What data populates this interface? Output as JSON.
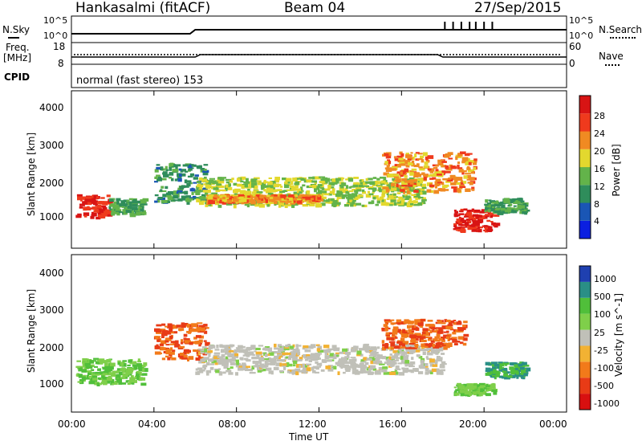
{
  "header": {
    "station": "Hankasalmi (fitACF)",
    "beam": "Beam 04",
    "date": "27/Sep/2015"
  },
  "noise_panel": {
    "left_label": "N.Sky",
    "left_ticks": [
      "10^5",
      "10^0"
    ],
    "right_label": "N.Search",
    "right_ticks": [
      "10^5",
      "10^0"
    ]
  },
  "freq_panel": {
    "left_label_1": "Freq.",
    "left_label_2": "[MHz]",
    "left_ticks": [
      "18",
      "8"
    ],
    "right_label": "Nave",
    "right_ticks": [
      "60",
      "0"
    ]
  },
  "cpid_panel": {
    "label": "CPID",
    "text": "normal (fast stereo) 153"
  },
  "x_axis": {
    "ticks": [
      "00:00",
      "04:00",
      "08:00",
      "12:00",
      "16:00",
      "20:00",
      "00:00"
    ],
    "label": "Time UT"
  },
  "power_panel": {
    "ylabel": "Slant Range [km]",
    "yticks": [
      "4000",
      "3000",
      "2000",
      "1000"
    ],
    "colorbar_label": "Power [dB]",
    "colorbar_ticks": [
      "28",
      "24",
      "20",
      "16",
      "12",
      "8",
      "4"
    ],
    "colors": [
      "#0b1fe0",
      "#1a56b5",
      "#2f8d5b",
      "#63b34a",
      "#e3d82e",
      "#f08a22",
      "#ef3a1d",
      "#d81414"
    ]
  },
  "velocity_panel": {
    "ylabel": "Slant Range [km]",
    "yticks": [
      "4000",
      "3000",
      "2000",
      "1000"
    ],
    "colorbar_label": "Velocity [m s^-1]",
    "colorbar_ticks": [
      "1000",
      "500",
      "100",
      "25",
      "-25",
      "-100",
      "-500",
      "-1000"
    ],
    "colors": [
      "#1f40b0",
      "#2a8f86",
      "#50bf3a",
      "#7fcf4a",
      "#c0c0b8",
      "#f2b233",
      "#f27a1a",
      "#e83b16",
      "#d81010"
    ]
  },
  "chart_data": {
    "type": "heatmap",
    "title": "Hankasalmi (fitACF)",
    "subtitle": "Beam 04",
    "date": "27/Sep/2015",
    "x_range_hours": [
      0,
      24
    ],
    "y_range_km": [
      180,
      4600
    ],
    "power_scatter_bands": [
      {
        "t_start": 0.2,
        "t_end": 1.8,
        "r_low": 1050,
        "r_high": 1700,
        "power_db": 28
      },
      {
        "t_start": 1.8,
        "t_end": 3.5,
        "r_low": 1150,
        "r_high": 1600,
        "power_db": 12
      },
      {
        "t_start": 4.0,
        "t_end": 6.5,
        "r_low": 1500,
        "r_high": 2600,
        "power_db": 10
      },
      {
        "t_start": 6.0,
        "t_end": 17.0,
        "r_low": 1400,
        "r_high": 2200,
        "power_db": 16
      },
      {
        "t_start": 6.5,
        "t_end": 12.0,
        "r_low": 1500,
        "r_high": 1700,
        "power_db": 22
      },
      {
        "t_start": 15.0,
        "t_end": 19.5,
        "r_low": 1800,
        "r_high": 2900,
        "power_db": 22
      },
      {
        "t_start": 18.5,
        "t_end": 20.5,
        "r_low": 700,
        "r_high": 1300,
        "power_db": 28
      },
      {
        "t_start": 20.0,
        "t_end": 22.0,
        "r_low": 1200,
        "r_high": 1600,
        "power_db": 12
      }
    ],
    "velocity_scatter_bands": [
      {
        "t_start": 0.2,
        "t_end": 3.5,
        "r_low": 1000,
        "r_high": 1700,
        "velocity": 100
      },
      {
        "t_start": 4.0,
        "t_end": 6.5,
        "r_low": 1700,
        "r_high": 2700,
        "velocity": -500
      },
      {
        "t_start": 6.0,
        "t_end": 18.0,
        "r_low": 1300,
        "r_high": 2100,
        "velocity": 0
      },
      {
        "t_start": 15.0,
        "t_end": 19.0,
        "r_low": 2000,
        "r_high": 2800,
        "velocity": -500
      },
      {
        "t_start": 18.5,
        "t_end": 20.5,
        "r_low": 700,
        "r_high": 1000,
        "velocity": 100
      },
      {
        "t_start": 20.0,
        "t_end": 22.0,
        "r_low": 1200,
        "r_high": 1600,
        "velocity": 500
      }
    ]
  }
}
